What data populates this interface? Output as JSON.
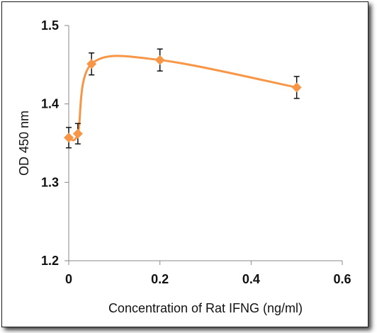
{
  "chart_data": {
    "type": "scatter",
    "title": "",
    "xlabel": "Concentration of Rat IFNG (ng/ml)",
    "ylabel": "OD 450 nm",
    "xlim": [
      0,
      0.6
    ],
    "ylim": [
      1.2,
      1.5
    ],
    "x_ticks": [
      "0",
      "0.2",
      "0.4",
      "0.6"
    ],
    "y_ticks": [
      "1.2",
      "1.3",
      "1.4",
      "1.5"
    ],
    "grid": false,
    "legend": "none",
    "smoothed_line": true,
    "color": "#F79646",
    "series": [
      {
        "points": [
          {
            "x": 0.0,
            "y": 1.357,
            "err": 0.013
          },
          {
            "x": 0.02,
            "y": 1.362,
            "err": 0.013
          },
          {
            "x": 0.05,
            "y": 1.451,
            "err": 0.014
          },
          {
            "x": 0.2,
            "y": 1.456,
            "err": 0.014
          },
          {
            "x": 0.5,
            "y": 1.421,
            "err": 0.014
          }
        ]
      }
    ]
  }
}
